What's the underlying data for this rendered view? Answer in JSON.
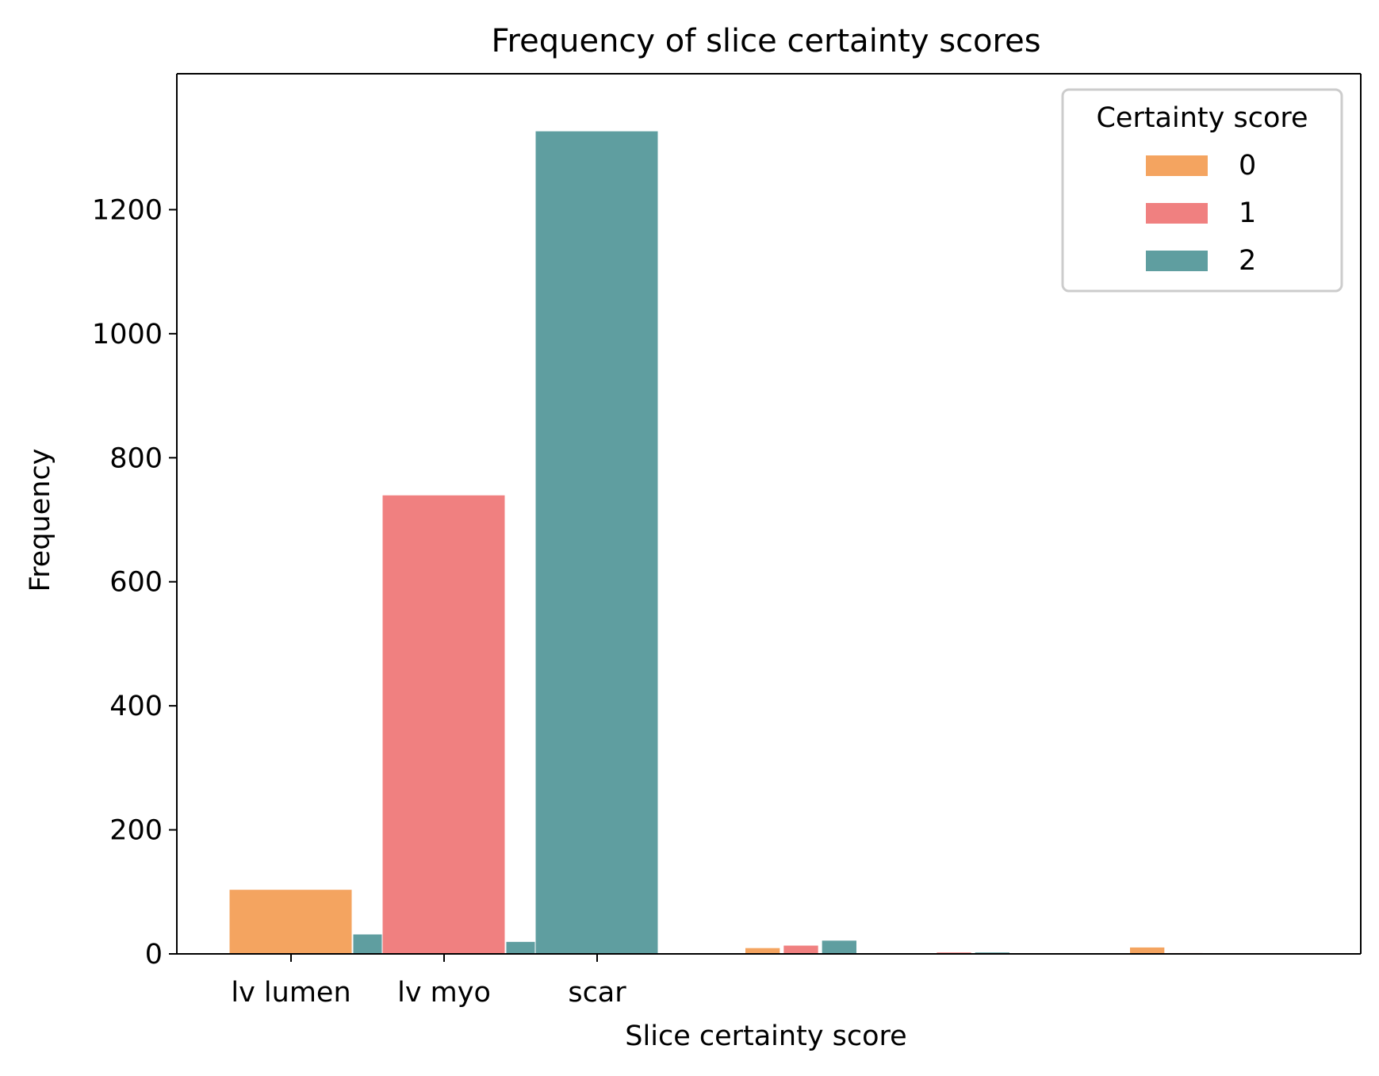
{
  "chart_data": {
    "type": "bar",
    "title": "Frequency of slice certainty scores",
    "xlabel": "Slice certainty score",
    "ylabel": "Frequency",
    "ylim": [
      0,
      1400
    ],
    "yticks": [
      0,
      200,
      400,
      600,
      800,
      1000,
      1200
    ],
    "categories": [
      "lv lumen",
      "lv myo",
      "scar"
    ],
    "grid": false,
    "legend": {
      "title": "Certainty score",
      "placement": "top-right"
    },
    "series": [
      {
        "name": "0",
        "color": "#F4A460",
        "values": [
          104,
          0,
          0
        ]
      },
      {
        "name": "1",
        "color": "#F08080",
        "values": [
          0,
          740,
          0
        ]
      },
      {
        "name": "2",
        "color": "#5F9EA0",
        "values": [
          32,
          20,
          1327
        ]
      }
    ],
    "unlabeled_groups": [
      {
        "values": [
          10,
          14,
          22
        ]
      },
      {
        "values": [
          0,
          3,
          3
        ]
      },
      {
        "values": [
          11,
          2,
          0
        ]
      }
    ]
  }
}
